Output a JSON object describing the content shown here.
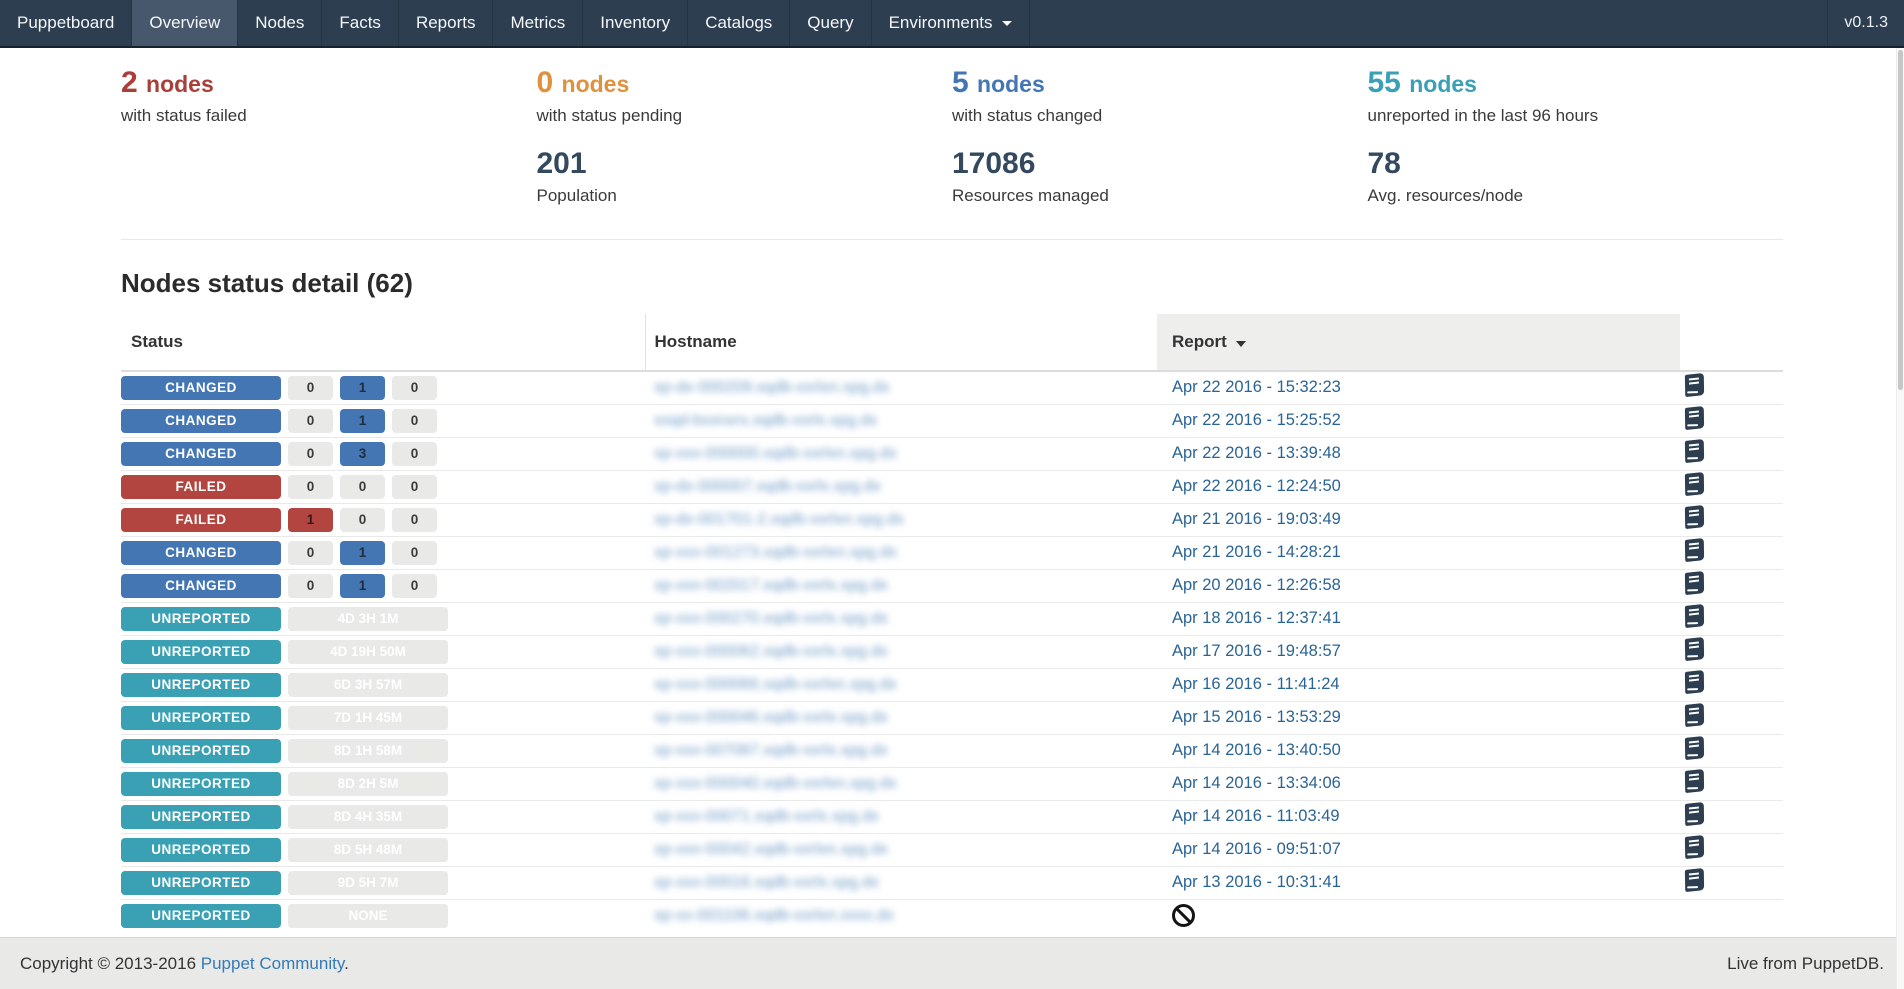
{
  "navbar": {
    "brand": "Puppetboard",
    "items": [
      {
        "label": "Overview",
        "active": true,
        "caret": false
      },
      {
        "label": "Nodes",
        "active": false,
        "caret": false
      },
      {
        "label": "Facts",
        "active": false,
        "caret": false
      },
      {
        "label": "Reports",
        "active": false,
        "caret": false
      },
      {
        "label": "Metrics",
        "active": false,
        "caret": false
      },
      {
        "label": "Inventory",
        "active": false,
        "caret": false
      },
      {
        "label": "Catalogs",
        "active": false,
        "caret": false
      },
      {
        "label": "Query",
        "active": false,
        "caret": false
      },
      {
        "label": "Environments",
        "active": false,
        "caret": true
      }
    ],
    "version": "v0.1.3"
  },
  "stats": {
    "cards": [
      {
        "value": "2",
        "unit": "nodes",
        "caption": "with status failed",
        "color": "#a93f38",
        "metric_value": "",
        "metric_caption": ""
      },
      {
        "value": "0",
        "unit": "nodes",
        "caption": "with status pending",
        "color": "#e0913c",
        "metric_value": "201",
        "metric_caption": "Population"
      },
      {
        "value": "5",
        "unit": "nodes",
        "caption": "with status changed",
        "color": "#4476b4",
        "metric_value": "17086",
        "metric_caption": "Resources managed"
      },
      {
        "value": "55",
        "unit": "nodes",
        "caption": "unreported in the last 96 hours",
        "color": "#3aa0b5",
        "metric_value": "78",
        "metric_caption": "Avg. resources/node"
      }
    ]
  },
  "section": {
    "title": "Nodes status detail (62)"
  },
  "table": {
    "headers": {
      "status": "Status",
      "hostname": "Hostname",
      "report": "Report",
      "report_sort": "descending"
    },
    "rows": [
      {
        "status": "CHANGED",
        "status_key": "changed",
        "counts": [
          "0",
          "1",
          "0"
        ],
        "highlight": 1,
        "duration": null,
        "hostname": "xp-dx-000209.xqdb-xxrlxn.xpg.dx",
        "report": "Apr 22 2016 - 15:32:23",
        "book_icon": true,
        "no_report": false
      },
      {
        "status": "CHANGED",
        "status_key": "changed",
        "counts": [
          "0",
          "1",
          "0"
        ],
        "highlight": 1,
        "duration": null,
        "hostname": "xxqd-bxxnxrx.xqdb-xxrlx.xpg.dx",
        "report": "Apr 22 2016 - 15:25:52",
        "book_icon": true,
        "no_report": false
      },
      {
        "status": "CHANGED",
        "status_key": "changed",
        "counts": [
          "0",
          "3",
          "0"
        ],
        "highlight": 1,
        "duration": null,
        "hostname": "xp-xxx-000000.xqdb-xxrlxn.xpg.dx",
        "report": "Apr 22 2016 - 13:39:48",
        "book_icon": true,
        "no_report": false
      },
      {
        "status": "FAILED",
        "status_key": "failed",
        "counts": [
          "0",
          "0",
          "0"
        ],
        "highlight": -1,
        "duration": null,
        "hostname": "xp-dx-000007.xqdb-xxrlx.xpg.dx",
        "report": "Apr 22 2016 - 12:24:50",
        "book_icon": true,
        "no_report": false
      },
      {
        "status": "FAILED",
        "status_key": "failed",
        "counts": [
          "1",
          "0",
          "0"
        ],
        "highlight": 0,
        "duration": null,
        "hostname": "xp-dx-001701-2.xqdb-xxrlxn.xpg.dx",
        "report": "Apr 21 2016 - 19:03:49",
        "book_icon": true,
        "no_report": false
      },
      {
        "status": "CHANGED",
        "status_key": "changed",
        "counts": [
          "0",
          "1",
          "0"
        ],
        "highlight": 1,
        "duration": null,
        "hostname": "xp-xxx-001273.xqdb-xxrlxn.xpg.dx",
        "report": "Apr 21 2016 - 14:28:21",
        "book_icon": true,
        "no_report": false
      },
      {
        "status": "CHANGED",
        "status_key": "changed",
        "counts": [
          "0",
          "1",
          "0"
        ],
        "highlight": 1,
        "duration": null,
        "hostname": "xp-xxx-002017.xqdb-xxrlx.xpg.dx",
        "report": "Apr 20 2016 - 12:26:58",
        "book_icon": true,
        "no_report": false
      },
      {
        "status": "UNREPORTED",
        "status_key": "unreported",
        "counts": null,
        "highlight": -1,
        "duration": "4D 3H 1M",
        "hostname": "xp-xxx-000270.xqdb-xxrlx.xpg.dx",
        "report": "Apr 18 2016 - 12:37:41",
        "book_icon": true,
        "no_report": false
      },
      {
        "status": "UNREPORTED",
        "status_key": "unreported",
        "counts": null,
        "highlight": -1,
        "duration": "4D 19H 50M",
        "hostname": "xp-xxx-000062.xqdb-xxrlx.xpg.dx",
        "report": "Apr 17 2016 - 19:48:57",
        "book_icon": true,
        "no_report": false
      },
      {
        "status": "UNREPORTED",
        "status_key": "unreported",
        "counts": null,
        "highlight": -1,
        "duration": "6D 3H 57M",
        "hostname": "xp-xxx-000066.xqdb-xxrlxn.xpg.dx",
        "report": "Apr 16 2016 - 11:41:24",
        "book_icon": true,
        "no_report": false
      },
      {
        "status": "UNREPORTED",
        "status_key": "unreported",
        "counts": null,
        "highlight": -1,
        "duration": "7D 1H 45M",
        "hostname": "xp-xxx-000046.xqdb-xxrlx.xpg.dx",
        "report": "Apr 15 2016 - 13:53:29",
        "book_icon": true,
        "no_report": false
      },
      {
        "status": "UNREPORTED",
        "status_key": "unreported",
        "counts": null,
        "highlight": -1,
        "duration": "8D 1H 58M",
        "hostname": "xp-xxx-007087.xqdb-xxrlx.xpg.dx",
        "report": "Apr 14 2016 - 13:40:50",
        "book_icon": true,
        "no_report": false
      },
      {
        "status": "UNREPORTED",
        "status_key": "unreported",
        "counts": null,
        "highlight": -1,
        "duration": "8D 2H 5M",
        "hostname": "xp-xxx-000040.xqdb-xxrlxn.xpg.dx",
        "report": "Apr 14 2016 - 13:34:06",
        "book_icon": true,
        "no_report": false
      },
      {
        "status": "UNREPORTED",
        "status_key": "unreported",
        "counts": null,
        "highlight": -1,
        "duration": "8D 4H 35M",
        "hostname": "xp-xxx-00071.xqdb-xxrlx.xpg.dx",
        "report": "Apr 14 2016 - 11:03:49",
        "book_icon": true,
        "no_report": false
      },
      {
        "status": "UNREPORTED",
        "status_key": "unreported",
        "counts": null,
        "highlight": -1,
        "duration": "8D 5H 48M",
        "hostname": "xp-xxx-00042.xqdb-xxrlxn.xpg.dx",
        "report": "Apr 14 2016 - 09:51:07",
        "book_icon": true,
        "no_report": false
      },
      {
        "status": "UNREPORTED",
        "status_key": "unreported",
        "counts": null,
        "highlight": -1,
        "duration": "9D 5H 7M",
        "hostname": "xp-xxx-00016.xqdb-xxrlx.xpg.dx",
        "report": "Apr 13 2016 - 10:31:41",
        "book_icon": true,
        "no_report": false
      },
      {
        "status": "UNREPORTED",
        "status_key": "unreported",
        "counts": null,
        "highlight": -1,
        "duration": "NONE",
        "hostname": "xp-xx-001106.xqdb-xxrlxn.xxxx.dx",
        "report": null,
        "book_icon": false,
        "no_report": true
      }
    ]
  },
  "footer": {
    "copyright_prefix": "Copyright © 2013-2016",
    "link_label": "Puppet Community",
    "suffix": ".",
    "right_text": "Live from PuppetDB."
  },
  "colors": {
    "navbar_bg": "#2c3e50",
    "status_changed": "#4476b4",
    "status_failed": "#b2453f",
    "status_unreported": "#3aa0b4",
    "pending_orange": "#e0913c",
    "failed_red": "#a93f38",
    "metric_navy": "#34495e",
    "report_link": "#2a6496",
    "count_badge_bg": "#e9e9e7"
  }
}
